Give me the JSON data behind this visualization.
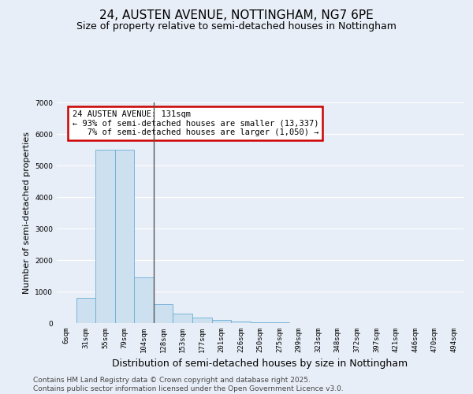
{
  "title": "24, AUSTEN AVENUE, NOTTINGHAM, NG7 6PE",
  "subtitle": "Size of property relative to semi-detached houses in Nottingham",
  "xlabel": "Distribution of semi-detached houses by size in Nottingham",
  "ylabel": "Number of semi-detached properties",
  "categories": [
    "6sqm",
    "31sqm",
    "55sqm",
    "79sqm",
    "104sqm",
    "128sqm",
    "153sqm",
    "177sqm",
    "201sqm",
    "226sqm",
    "250sqm",
    "275sqm",
    "299sqm",
    "323sqm",
    "348sqm",
    "372sqm",
    "397sqm",
    "421sqm",
    "446sqm",
    "470sqm",
    "494sqm"
  ],
  "values": [
    5,
    800,
    5500,
    5500,
    1450,
    600,
    300,
    170,
    100,
    60,
    30,
    15,
    5,
    2,
    1,
    1,
    0,
    0,
    0,
    0,
    0
  ],
  "bar_color": "#cce0f0",
  "bar_edge_color": "#6aaed6",
  "annotation_text": "24 AUSTEN AVENUE: 131sqm\n← 93% of semi-detached houses are smaller (13,337)\n   7% of semi-detached houses are larger (1,050) →",
  "annotation_box_color": "#cc0000",
  "ylim": [
    0,
    7000
  ],
  "yticks": [
    0,
    1000,
    2000,
    3000,
    4000,
    5000,
    6000,
    7000
  ],
  "footer_line1": "Contains HM Land Registry data © Crown copyright and database right 2025.",
  "footer_line2": "Contains public sector information licensed under the Open Government Licence v3.0.",
  "bg_color": "#e8eef7",
  "plot_bg_color": "#e8eef7",
  "grid_color": "#ffffff",
  "title_fontsize": 11,
  "subtitle_fontsize": 9,
  "ylabel_fontsize": 8,
  "xlabel_fontsize": 9,
  "tick_fontsize": 6.5,
  "annotation_fontsize": 7.5,
  "footer_fontsize": 6.5
}
